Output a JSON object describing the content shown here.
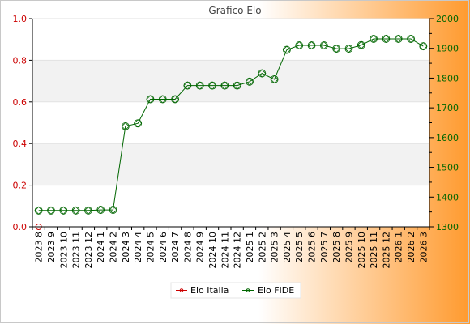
{
  "chart_data": {
    "type": "line",
    "title": "Grafico Elo",
    "categories": [
      "2023 8",
      "2023 9",
      "2023 10",
      "2023 11",
      "2023 12",
      "2024 1",
      "2024 2",
      "2024 3",
      "2024 4",
      "2024 5",
      "2024 6",
      "2024 7",
      "2024 8",
      "2024 9",
      "2024 10",
      "2024 11",
      "2024 12",
      "2025 1",
      "2025 2",
      "2025 3",
      "2025 4",
      "2025 5",
      "2025 6",
      "2025 7",
      "2025 8",
      "2025 9",
      "2025 10",
      "2025 11",
      "2025 12",
      "2026 1",
      "2026 2",
      "2026 3"
    ],
    "y_left": {
      "ticks": [
        "0.0",
        "0.2",
        "0.4",
        "0.6",
        "0.8",
        "1.0"
      ],
      "ylim": [
        0,
        1
      ],
      "color": "#cc0000"
    },
    "y_right": {
      "ticks": [
        "1300",
        "1400",
        "1500",
        "1600",
        "1700",
        "1800",
        "1900",
        "2000"
      ],
      "ylim": [
        1300,
        2000
      ],
      "color": "#006600"
    },
    "series": [
      {
        "name": "Elo Italia",
        "axis": "left",
        "color": "#cc0000",
        "values": [
          0,
          null,
          null,
          null,
          null,
          null,
          null,
          null,
          null,
          null,
          null,
          null,
          null,
          null,
          null,
          null,
          null,
          null,
          null,
          null,
          null,
          null,
          null,
          null,
          null,
          null,
          null,
          null,
          null,
          null,
          null,
          null
        ]
      },
      {
        "name": "Elo FIDE",
        "axis": "right",
        "color": "#006600",
        "values": [
          1355,
          1355,
          1355,
          1355,
          1355,
          1357,
          1357,
          1638,
          1648,
          1729,
          1729,
          1729,
          1775,
          1775,
          1775,
          1775,
          1775,
          1788,
          1816,
          1796,
          1895,
          1910,
          1910,
          1910,
          1899,
          1899,
          1911,
          1932,
          1932,
          1932,
          1932,
          1907
        ]
      }
    ],
    "grid": "horizontal alternating bands",
    "legend_position": "bottom-center"
  }
}
